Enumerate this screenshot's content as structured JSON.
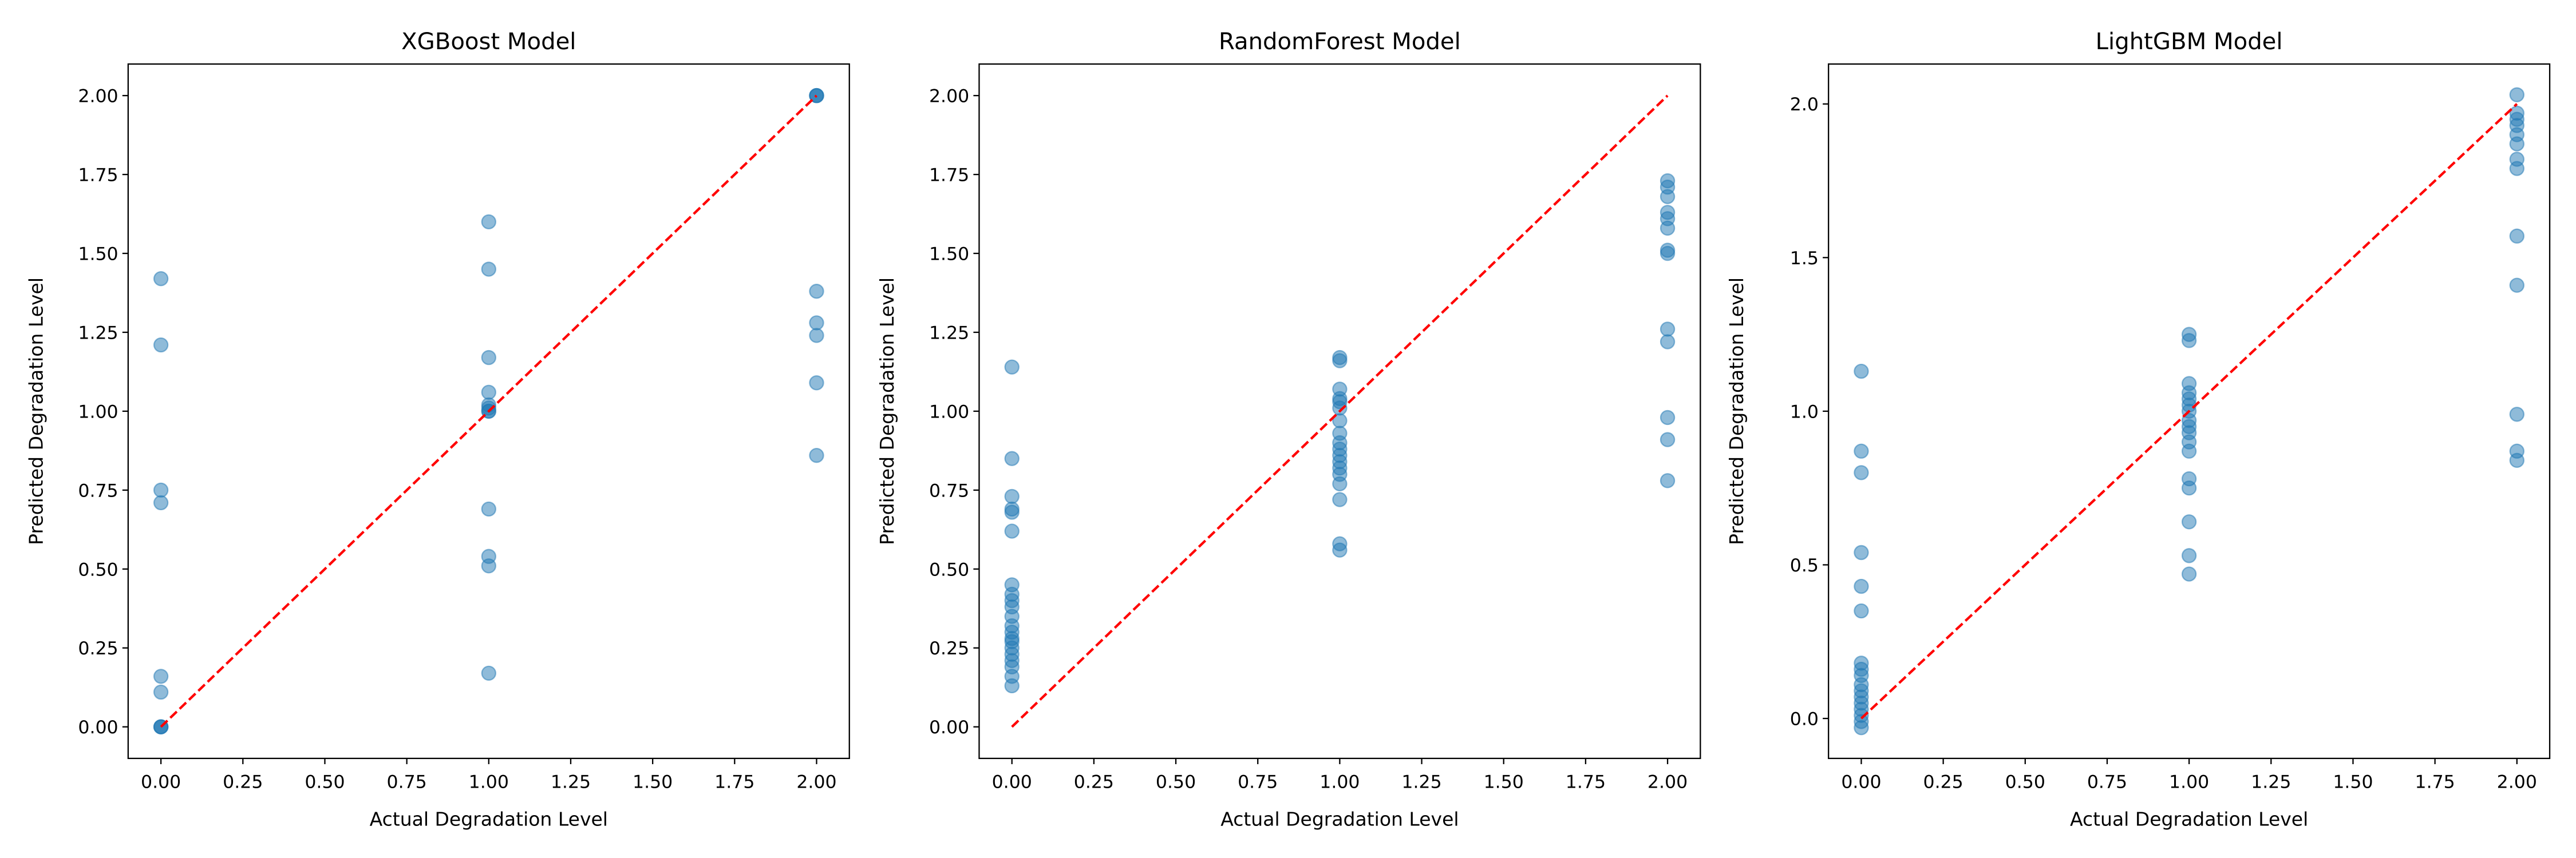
{
  "chart_data": [
    {
      "type": "scatter",
      "title": "XGBoost Model",
      "xlabel": "Actual Degradation Level",
      "ylabel": "Predicted Degradation Level",
      "color": "#1f77b4",
      "x": [
        0,
        0,
        0,
        0,
        0,
        0,
        0,
        0,
        0,
        1,
        1,
        1,
        1,
        1,
        1,
        1,
        1,
        1,
        1,
        1,
        1,
        2,
        2,
        2,
        2,
        2,
        2,
        2,
        2
      ],
      "y": [
        0,
        0,
        0,
        0.11,
        0.16,
        0.71,
        0.75,
        1.21,
        1.42,
        0.17,
        0.51,
        0.54,
        0.69,
        1.0,
        1.0,
        1.01,
        1.02,
        1.06,
        1.17,
        1.45,
        1.6,
        0.86,
        1.09,
        1.24,
        1.28,
        1.38,
        2.0,
        2.0,
        2.0
      ],
      "reference_line": {
        "x": [
          0,
          2
        ],
        "y": [
          0,
          2
        ],
        "color": "#ff0000"
      },
      "xlim": [
        -0.1,
        2.1
      ],
      "ylim": [
        -0.1,
        2.1
      ],
      "xticks": [
        {
          "value": 0,
          "label": "0.00"
        },
        0.25,
        {
          "value": 0.5,
          "label": "0.50"
        },
        0.75,
        {
          "value": 1,
          "label": "1.00"
        },
        1.25,
        {
          "value": 1.5,
          "label": "1.50"
        },
        1.75,
        {
          "value": 2,
          "label": "2.00"
        }
      ],
      "yticks": [
        {
          "value": 0,
          "label": "0.00"
        },
        0.25,
        {
          "value": 0.5,
          "label": "0.50"
        },
        0.75,
        {
          "value": 1,
          "label": "1.00"
        },
        1.25,
        {
          "value": 1.5,
          "label": "1.50"
        },
        1.75,
        {
          "value": 2,
          "label": "2.00"
        }
      ]
    },
    {
      "type": "scatter",
      "title": "RandomForest Model",
      "xlabel": "Actual Degradation Level",
      "ylabel": "Predicted Degradation Level",
      "color": "#1f77b4",
      "x": [
        0,
        0,
        0,
        0,
        0,
        0,
        0,
        0,
        0,
        0,
        0,
        0,
        0,
        0,
        0,
        0,
        0,
        0,
        0,
        0,
        0,
        1,
        1,
        1,
        1,
        1,
        1,
        1,
        1,
        1,
        1,
        1,
        1,
        1,
        1,
        1,
        1,
        1,
        1,
        2,
        2,
        2,
        2,
        2,
        2,
        2,
        2,
        2,
        2,
        2,
        2,
        2
      ],
      "y": [
        0.13,
        0.16,
        0.19,
        0.21,
        0.23,
        0.25,
        0.27,
        0.28,
        0.3,
        0.32,
        0.35,
        0.38,
        0.4,
        0.42,
        0.45,
        0.62,
        0.68,
        0.69,
        0.73,
        0.85,
        1.14,
        0.56,
        0.58,
        0.72,
        0.77,
        0.8,
        0.82,
        0.84,
        0.86,
        0.88,
        0.9,
        0.93,
        0.97,
        1.01,
        1.03,
        1.04,
        1.07,
        1.16,
        1.17,
        0.78,
        0.91,
        0.98,
        1.22,
        1.26,
        1.5,
        1.51,
        1.58,
        1.61,
        1.63,
        1.68,
        1.71,
        1.73
      ],
      "reference_line": {
        "x": [
          0,
          2
        ],
        "y": [
          0,
          2
        ],
        "color": "#ff0000"
      },
      "xlim": [
        -0.1,
        2.1
      ],
      "ylim": [
        -0.1,
        2.1
      ],
      "xticks": [
        {
          "value": 0,
          "label": "0.00"
        },
        0.25,
        {
          "value": 0.5,
          "label": "0.50"
        },
        0.75,
        {
          "value": 1,
          "label": "1.00"
        },
        1.25,
        {
          "value": 1.5,
          "label": "1.50"
        },
        1.75,
        {
          "value": 2,
          "label": "2.00"
        }
      ],
      "yticks": [
        {
          "value": 0,
          "label": "0.00"
        },
        0.25,
        {
          "value": 0.5,
          "label": "0.50"
        },
        0.75,
        {
          "value": 1,
          "label": "1.00"
        },
        1.25,
        {
          "value": 1.5,
          "label": "1.50"
        },
        1.75,
        {
          "value": 2,
          "label": "2.00"
        }
      ]
    },
    {
      "type": "scatter",
      "title": "LightGBM Model",
      "xlabel": "Actual Degradation Level",
      "ylabel": "Predicted Degradation Level",
      "color": "#1f77b4",
      "x": [
        0,
        0,
        0,
        0,
        0,
        0,
        0,
        0,
        0,
        0,
        0,
        0,
        0,
        0,
        0,
        0,
        0,
        1,
        1,
        1,
        1,
        1,
        1,
        1,
        1,
        1,
        1,
        1,
        1,
        1,
        1,
        1,
        1,
        1,
        2,
        2,
        2,
        2,
        2,
        2,
        2,
        2,
        2,
        2,
        2,
        2,
        2
      ],
      "y": [
        -0.03,
        -0.01,
        0.01,
        0.03,
        0.05,
        0.07,
        0.09,
        0.11,
        0.14,
        0.16,
        0.18,
        0.35,
        0.43,
        0.54,
        0.8,
        0.87,
        1.13,
        0.47,
        0.53,
        0.64,
        0.75,
        0.78,
        0.87,
        0.9,
        0.93,
        0.95,
        0.97,
        1.0,
        1.02,
        1.04,
        1.06,
        1.09,
        1.23,
        1.25,
        0.84,
        0.87,
        0.99,
        1.41,
        1.57,
        1.79,
        1.82,
        1.87,
        1.9,
        1.93,
        1.95,
        1.97,
        2.03
      ],
      "reference_line": {
        "x": [
          0,
          2
        ],
        "y": [
          0,
          2
        ],
        "color": "#ff0000"
      },
      "xlim": [
        -0.1,
        2.1
      ],
      "ylim": [
        -0.13,
        2.13
      ],
      "xticks": [
        {
          "value": 0,
          "label": "0.00"
        },
        0.25,
        {
          "value": 0.5,
          "label": "0.50"
        },
        0.75,
        {
          "value": 1,
          "label": "1.00"
        },
        1.25,
        {
          "value": 1.5,
          "label": "1.50"
        },
        1.75,
        {
          "value": 2,
          "label": "2.00"
        }
      ],
      "yticks": [
        {
          "value": 0,
          "label": "0.0"
        },
        0.5,
        {
          "value": 1,
          "label": "1.0"
        },
        1.5,
        {
          "value": 2,
          "label": "2.0"
        }
      ]
    }
  ]
}
